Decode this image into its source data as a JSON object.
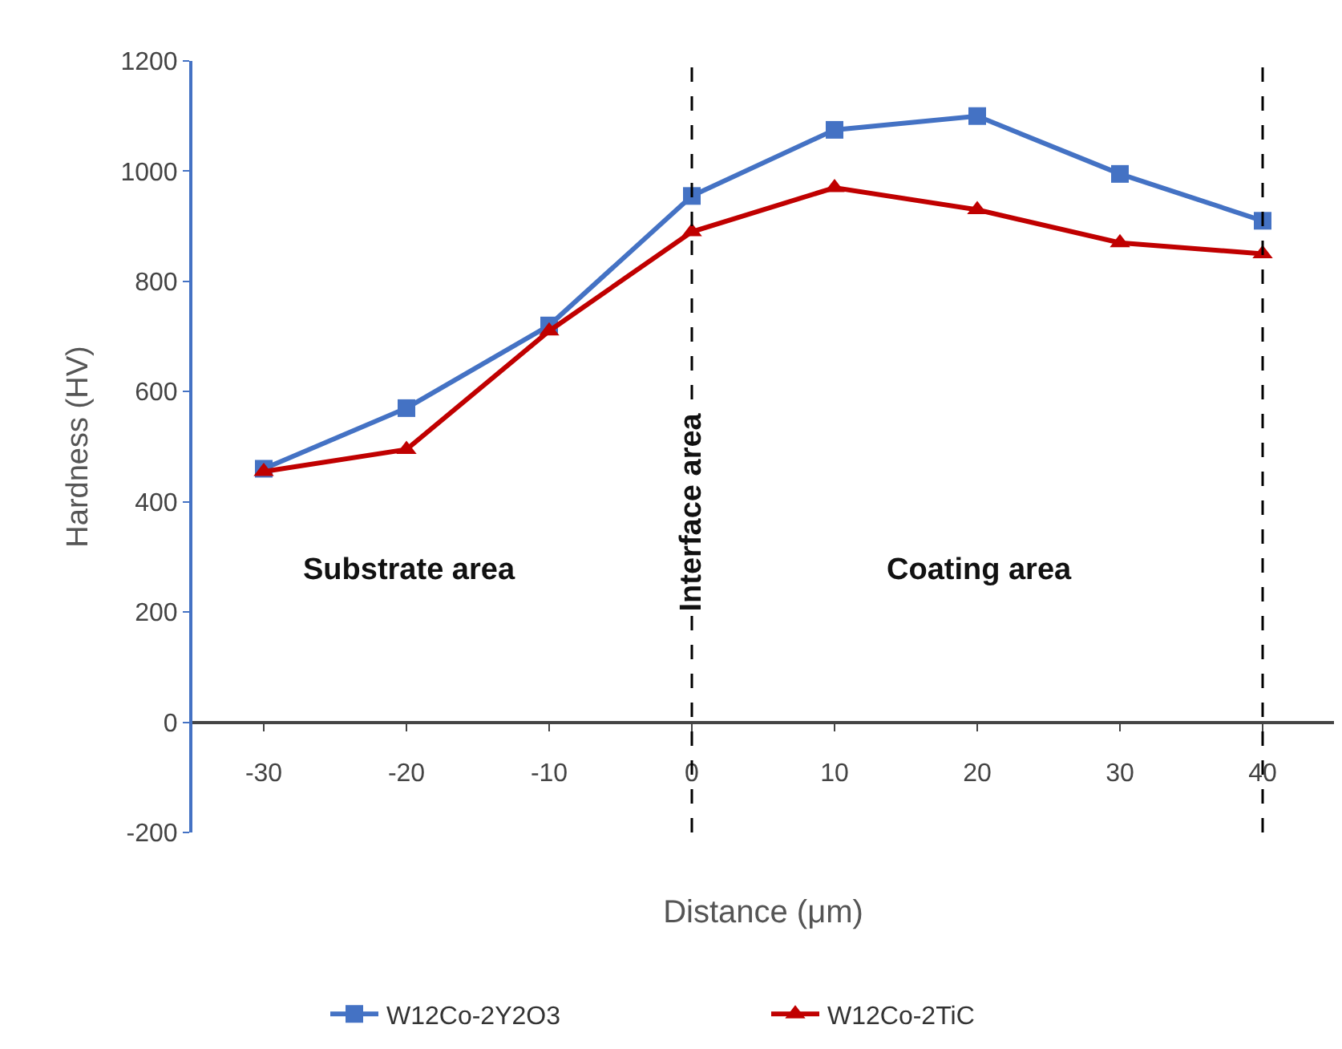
{
  "chart_data": {
    "type": "line",
    "xlabel": "Distance (μm)",
    "ylabel": "Hardness (HV)",
    "x": [
      -30,
      -20,
      -10,
      0,
      10,
      20,
      30,
      40
    ],
    "series": [
      {
        "name": "W12Co-2Y2O3",
        "color": "#4472c4",
        "marker": "square",
        "values": [
          460,
          570,
          720,
          955,
          1075,
          1100,
          995,
          910
        ]
      },
      {
        "name": "W12Co-2TiC",
        "color": "#c00000",
        "marker": "triangle",
        "values": [
          455,
          495,
          710,
          890,
          970,
          930,
          870,
          850
        ]
      }
    ],
    "xlim": [
      -35,
      45
    ],
    "xticks": [
      -30,
      -20,
      -10,
      0,
      10,
      20,
      30,
      40
    ],
    "ylim": [
      -200,
      1200
    ],
    "yticks": [
      -200,
      0,
      200,
      400,
      600,
      800,
      1000,
      1200
    ],
    "ref_lines": [
      {
        "axis": "x",
        "value": 0,
        "color": "#000000",
        "line_style": "dashed"
      },
      {
        "axis": "x",
        "value": 40,
        "color": "#000000",
        "line_style": "dashed"
      }
    ],
    "annotations": [
      "Substrate area",
      {
        "text": "Interface area",
        "x": 0,
        "y": 380
      },
      "Coating area"
    ],
    "legend": "bottom",
    "line_style": "solid"
  }
}
